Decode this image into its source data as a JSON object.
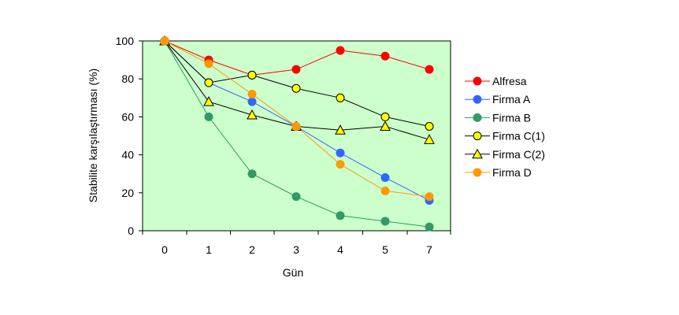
{
  "chart_data": {
    "type": "line",
    "title": "",
    "xlabel": "Gün",
    "ylabel": "Stabilite karşılaştırması (%)",
    "x": [
      0,
      1,
      2,
      3,
      4,
      5,
      7
    ],
    "x_tick_labels": [
      "0",
      "1",
      "2",
      "3",
      "4",
      "5",
      "7"
    ],
    "y_ticks": [
      0,
      20,
      40,
      60,
      80,
      100
    ],
    "ylim": [
      0,
      100
    ],
    "grid": false,
    "legend": "right",
    "plot_background": "#ccffcc",
    "series": [
      {
        "name": "Alfresa",
        "color": "#ff0000",
        "marker": "circle",
        "values": [
          100,
          90,
          82,
          85,
          95,
          92,
          85
        ]
      },
      {
        "name": "Firma A",
        "color": "#3366ff",
        "marker": "circle",
        "values": [
          100,
          78,
          68,
          55,
          41,
          28,
          16
        ]
      },
      {
        "name": "Firma B",
        "color": "#339966",
        "marker": "circle",
        "values": [
          100,
          60,
          30,
          18,
          8,
          5,
          2
        ]
      },
      {
        "name": "Firma C(1)",
        "color": "#000000",
        "marker_fill": "#ffff00",
        "marker": "circle",
        "values": [
          100,
          78,
          82,
          75,
          70,
          60,
          55
        ]
      },
      {
        "name": "Firma C(2)",
        "color": "#000000",
        "marker_fill": "#ffff00",
        "marker": "triangle",
        "values": [
          100,
          68,
          61,
          55,
          53,
          55,
          48
        ]
      },
      {
        "name": "Firma D",
        "color": "#ff9900",
        "marker": "circle",
        "values": [
          100,
          88,
          72,
          55,
          35,
          21,
          18
        ]
      }
    ]
  }
}
